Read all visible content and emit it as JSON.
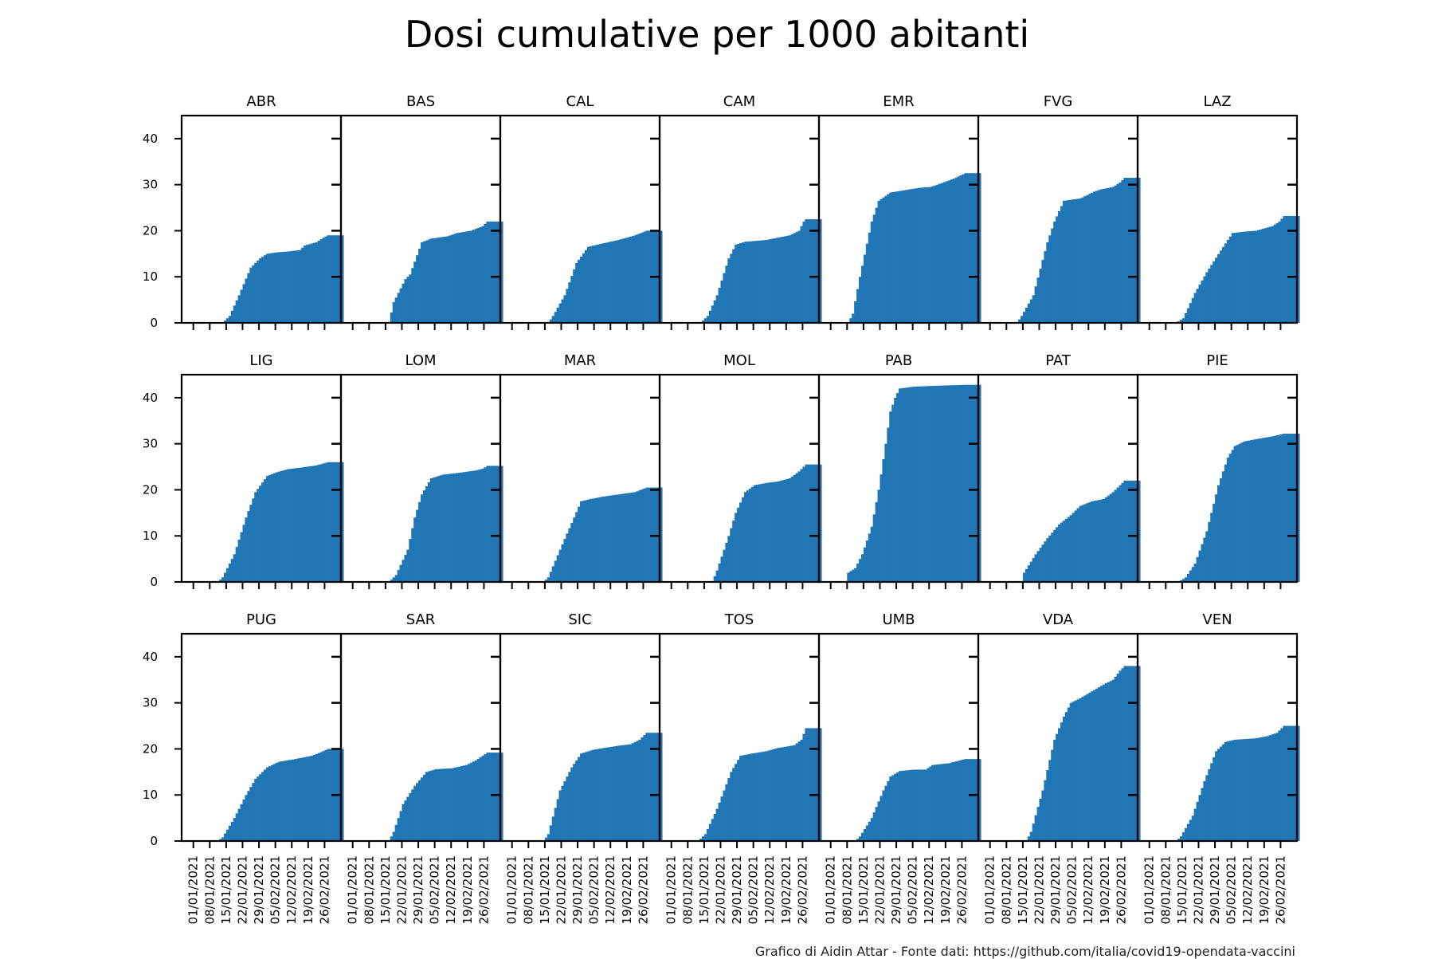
{
  "title": "Dosi cumulative per 1000 abitanti",
  "footer": "Grafico di Aidin Attar - Fonte dati: https://github.com/italia/covid19-opendata-vaccini",
  "colors": {
    "bar": "#2177b5",
    "axis": "#000000"
  },
  "chart_data": {
    "type": "bar",
    "layout": "small-multiples",
    "rows": 3,
    "cols": 7,
    "ylim": [
      0,
      45
    ],
    "yticks": [
      0,
      10,
      20,
      30,
      40
    ],
    "xlim": [
      "2020-12-27",
      "2021-03-05"
    ],
    "xticks": [
      "01/01/2021",
      "08/01/2021",
      "15/01/2021",
      "22/01/2021",
      "29/01/2021",
      "05/02/2021",
      "12/02/2021",
      "19/02/2021",
      "26/02/2021"
    ],
    "date_start": "2020-12-27",
    "date_end": "2021-03-05",
    "grid": false,
    "panels": [
      {
        "name": "ABR",
        "points": [
          [
            "2020-12-27",
            0
          ],
          [
            "2021-01-13",
            0
          ],
          [
            "2021-01-16",
            1.5
          ],
          [
            "2021-01-20",
            6
          ],
          [
            "2021-01-25",
            12
          ],
          [
            "2021-01-29",
            14
          ],
          [
            "2021-02-01",
            15
          ],
          [
            "2021-02-05",
            15.3
          ],
          [
            "2021-02-10",
            15.5
          ],
          [
            "2021-02-15",
            15.8
          ],
          [
            "2021-02-17",
            16.8
          ],
          [
            "2021-02-22",
            17.5
          ],
          [
            "2021-02-25",
            18.5
          ],
          [
            "2021-02-27",
            19
          ]
        ]
      },
      {
        "name": "BAS",
        "points": [
          [
            "2020-12-27",
            0
          ],
          [
            "2021-01-16",
            0
          ],
          [
            "2021-01-18",
            4.5
          ],
          [
            "2021-01-23",
            9.5
          ],
          [
            "2021-01-25",
            10.5
          ],
          [
            "2021-01-30",
            17.5
          ],
          [
            "2021-02-03",
            18.3
          ],
          [
            "2021-02-10",
            18.8
          ],
          [
            "2021-02-14",
            19.5
          ],
          [
            "2021-02-20",
            20
          ],
          [
            "2021-02-25",
            21
          ],
          [
            "2021-02-27",
            22
          ]
        ]
      },
      {
        "name": "CAL",
        "points": [
          [
            "2020-12-27",
            0
          ],
          [
            "2021-01-16",
            0
          ],
          [
            "2021-01-18",
            1.5
          ],
          [
            "2021-01-23",
            6
          ],
          [
            "2021-01-28",
            13
          ],
          [
            "2021-02-02",
            16.5
          ],
          [
            "2021-02-06",
            17
          ],
          [
            "2021-02-15",
            18
          ],
          [
            "2021-02-22",
            19
          ],
          [
            "2021-02-27",
            20
          ]
        ]
      },
      {
        "name": "CAM",
        "points": [
          [
            "2020-12-27",
            0
          ],
          [
            "2021-01-13",
            0
          ],
          [
            "2021-01-16",
            1.5
          ],
          [
            "2021-01-20",
            6
          ],
          [
            "2021-01-25",
            14
          ],
          [
            "2021-01-28",
            17
          ],
          [
            "2021-02-01",
            17.6
          ],
          [
            "2021-02-10",
            18
          ],
          [
            "2021-02-15",
            18.5
          ],
          [
            "2021-02-20",
            19
          ],
          [
            "2021-02-24",
            20
          ],
          [
            "2021-02-26",
            22
          ],
          [
            "2021-02-27",
            22.5
          ]
        ]
      },
      {
        "name": "EMR",
        "points": [
          [
            "2020-12-27",
            0
          ],
          [
            "2021-01-08",
            0
          ],
          [
            "2021-01-10",
            2
          ],
          [
            "2021-01-13",
            10
          ],
          [
            "2021-01-18",
            22
          ],
          [
            "2021-01-21",
            26.5
          ],
          [
            "2021-01-26",
            28.3
          ],
          [
            "2021-02-01",
            28.8
          ],
          [
            "2021-02-07",
            29.3
          ],
          [
            "2021-02-12",
            29.5
          ],
          [
            "2021-02-15",
            30
          ],
          [
            "2021-02-22",
            31.3
          ],
          [
            "2021-02-27",
            32.5
          ]
        ]
      },
      {
        "name": "FVG",
        "points": [
          [
            "2020-12-27",
            0
          ],
          [
            "2021-01-12",
            0
          ],
          [
            "2021-01-14",
            1.5
          ],
          [
            "2021-01-19",
            6
          ],
          [
            "2021-01-25",
            17.5
          ],
          [
            "2021-01-28",
            22
          ],
          [
            "2021-02-01",
            26.5
          ],
          [
            "2021-02-05",
            26.8
          ],
          [
            "2021-02-08",
            27
          ],
          [
            "2021-02-14",
            28.5
          ],
          [
            "2021-02-17",
            29
          ],
          [
            "2021-02-22",
            29.5
          ],
          [
            "2021-02-25",
            30.5
          ],
          [
            "2021-02-27",
            31.5
          ]
        ]
      },
      {
        "name": "LAZ",
        "points": [
          [
            "2020-12-27",
            0
          ],
          [
            "2021-01-12",
            0
          ],
          [
            "2021-01-15",
            1
          ],
          [
            "2021-01-20",
            6.5
          ],
          [
            "2021-01-25",
            11
          ],
          [
            "2021-02-01",
            16.5
          ],
          [
            "2021-02-05",
            19.5
          ],
          [
            "2021-02-10",
            19.8
          ],
          [
            "2021-02-15",
            20
          ],
          [
            "2021-02-22",
            21
          ],
          [
            "2021-02-25",
            22
          ],
          [
            "2021-02-27",
            23.2
          ]
        ]
      },
      {
        "name": "LIG",
        "points": [
          [
            "2020-12-27",
            0
          ],
          [
            "2021-01-11",
            0
          ],
          [
            "2021-01-13",
            1
          ],
          [
            "2021-01-18",
            6
          ],
          [
            "2021-01-23",
            14
          ],
          [
            "2021-01-27",
            19.5
          ],
          [
            "2021-02-01",
            23
          ],
          [
            "2021-02-05",
            23.8
          ],
          [
            "2021-02-10",
            24.5
          ],
          [
            "2021-02-15",
            24.8
          ],
          [
            "2021-02-22",
            25.3
          ],
          [
            "2021-02-27",
            26
          ]
        ]
      },
      {
        "name": "LOM",
        "points": [
          [
            "2020-12-27",
            0
          ],
          [
            "2021-01-16",
            0
          ],
          [
            "2021-01-19",
            1.5
          ],
          [
            "2021-01-24",
            7
          ],
          [
            "2021-01-27",
            14
          ],
          [
            "2021-01-30",
            19
          ],
          [
            "2021-02-03",
            22.5
          ],
          [
            "2021-02-08",
            23.3
          ],
          [
            "2021-02-15",
            23.7
          ],
          [
            "2021-02-22",
            24.2
          ],
          [
            "2021-02-25",
            24.6
          ],
          [
            "2021-02-27",
            25.2
          ]
        ]
      },
      {
        "name": "MAR",
        "points": [
          [
            "2020-12-27",
            0
          ],
          [
            "2021-01-14",
            0
          ],
          [
            "2021-01-16",
            1
          ],
          [
            "2021-01-21",
            7
          ],
          [
            "2021-01-27",
            14
          ],
          [
            "2021-01-30",
            17.5
          ],
          [
            "2021-02-03",
            18
          ],
          [
            "2021-02-08",
            18.5
          ],
          [
            "2021-02-15",
            19
          ],
          [
            "2021-02-22",
            19.5
          ],
          [
            "2021-02-27",
            20.5
          ]
        ]
      },
      {
        "name": "MOL",
        "points": [
          [
            "2020-12-27",
            0
          ],
          [
            "2021-01-18",
            0
          ],
          [
            "2021-01-20",
            2.5
          ],
          [
            "2021-01-25",
            10
          ],
          [
            "2021-01-28",
            15
          ],
          [
            "2021-02-01",
            19.5
          ],
          [
            "2021-02-05",
            21
          ],
          [
            "2021-02-10",
            21.5
          ],
          [
            "2021-02-15",
            21.8
          ],
          [
            "2021-02-20",
            22.5
          ],
          [
            "2021-02-24",
            24
          ],
          [
            "2021-02-27",
            25.5
          ]
        ]
      },
      {
        "name": "PAB",
        "points": [
          [
            "2020-12-27",
            0
          ],
          [
            "2021-01-07",
            0
          ],
          [
            "2021-01-08",
            2
          ],
          [
            "2021-01-11",
            3
          ],
          [
            "2021-01-14",
            6
          ],
          [
            "2021-01-18",
            12
          ],
          [
            "2021-01-21",
            20
          ],
          [
            "2021-01-24",
            30
          ],
          [
            "2021-01-26",
            37
          ],
          [
            "2021-01-28",
            40
          ],
          [
            "2021-01-30",
            42
          ],
          [
            "2021-02-05",
            42.4
          ],
          [
            "2021-02-15",
            42.6
          ],
          [
            "2021-02-27",
            42.8
          ]
        ]
      },
      {
        "name": "PAT",
        "points": [
          [
            "2020-12-27",
            0
          ],
          [
            "2021-01-14",
            0
          ],
          [
            "2021-01-15",
            2
          ],
          [
            "2021-01-20",
            6
          ],
          [
            "2021-01-25",
            9.5
          ],
          [
            "2021-01-30",
            12.5
          ],
          [
            "2021-02-04",
            14.5
          ],
          [
            "2021-02-08",
            16.5
          ],
          [
            "2021-02-13",
            17.5
          ],
          [
            "2021-02-18",
            18
          ],
          [
            "2021-02-22",
            19.5
          ],
          [
            "2021-02-27",
            22
          ]
        ]
      },
      {
        "name": "PIE",
        "points": [
          [
            "2020-12-27",
            0
          ],
          [
            "2021-01-13",
            0
          ],
          [
            "2021-01-16",
            1
          ],
          [
            "2021-01-20",
            4
          ],
          [
            "2021-01-25",
            11
          ],
          [
            "2021-01-30",
            21
          ],
          [
            "2021-02-03",
            27
          ],
          [
            "2021-02-06",
            29.5
          ],
          [
            "2021-02-10",
            30.5
          ],
          [
            "2021-02-15",
            31
          ],
          [
            "2021-02-22",
            31.6
          ],
          [
            "2021-02-27",
            32.2
          ]
        ]
      },
      {
        "name": "PUG",
        "points": [
          [
            "2020-12-27",
            0
          ],
          [
            "2021-01-11",
            0
          ],
          [
            "2021-01-13",
            0.8
          ],
          [
            "2021-01-18",
            5
          ],
          [
            "2021-01-23",
            10
          ],
          [
            "2021-01-27",
            13.5
          ],
          [
            "2021-02-01",
            16
          ],
          [
            "2021-02-06",
            17.2
          ],
          [
            "2021-02-13",
            17.8
          ],
          [
            "2021-02-20",
            18.5
          ],
          [
            "2021-02-24",
            19.3
          ],
          [
            "2021-02-27",
            20
          ]
        ]
      },
      {
        "name": "SAR",
        "points": [
          [
            "2020-12-27",
            0
          ],
          [
            "2021-01-16",
            0
          ],
          [
            "2021-01-18",
            2
          ],
          [
            "2021-01-22",
            8
          ],
          [
            "2021-01-27",
            12
          ],
          [
            "2021-02-01",
            15
          ],
          [
            "2021-02-05",
            15.6
          ],
          [
            "2021-02-12",
            15.8
          ],
          [
            "2021-02-18",
            16.5
          ],
          [
            "2021-02-22",
            17.5
          ],
          [
            "2021-02-27",
            19.2
          ]
        ]
      },
      {
        "name": "SIC",
        "points": [
          [
            "2020-12-27",
            0
          ],
          [
            "2021-01-14",
            0
          ],
          [
            "2021-01-16",
            1.5
          ],
          [
            "2021-01-21",
            11
          ],
          [
            "2021-01-26",
            16
          ],
          [
            "2021-01-30",
            19
          ],
          [
            "2021-02-04",
            19.8
          ],
          [
            "2021-02-10",
            20.3
          ],
          [
            "2021-02-15",
            20.7
          ],
          [
            "2021-02-20",
            21
          ],
          [
            "2021-02-24",
            22
          ],
          [
            "2021-02-27",
            23.5
          ]
        ]
      },
      {
        "name": "TOS",
        "points": [
          [
            "2020-12-27",
            0
          ],
          [
            "2021-01-12",
            0
          ],
          [
            "2021-01-15",
            1.5
          ],
          [
            "2021-01-20",
            7
          ],
          [
            "2021-01-26",
            15
          ],
          [
            "2021-01-30",
            18.5
          ],
          [
            "2021-02-04",
            19
          ],
          [
            "2021-02-10",
            19.5
          ],
          [
            "2021-02-15",
            20.2
          ],
          [
            "2021-02-22",
            20.8
          ],
          [
            "2021-02-25",
            22
          ],
          [
            "2021-02-27",
            24.5
          ]
        ]
      },
      {
        "name": "UMB",
        "points": [
          [
            "2020-12-27",
            0
          ],
          [
            "2021-01-11",
            0
          ],
          [
            "2021-01-13",
            1
          ],
          [
            "2021-01-18",
            5
          ],
          [
            "2021-01-23",
            11
          ],
          [
            "2021-01-26",
            14
          ],
          [
            "2021-01-30",
            15.2
          ],
          [
            "2021-02-05",
            15.5
          ],
          [
            "2021-02-10",
            15.5
          ],
          [
            "2021-02-13",
            16.5
          ],
          [
            "2021-02-20",
            16.9
          ],
          [
            "2021-02-27",
            17.8
          ]
        ]
      },
      {
        "name": "VDA",
        "points": [
          [
            "2020-12-27",
            0
          ],
          [
            "2021-01-16",
            0
          ],
          [
            "2021-01-18",
            2
          ],
          [
            "2021-01-23",
            11
          ],
          [
            "2021-01-28",
            22
          ],
          [
            "2021-02-01",
            27
          ],
          [
            "2021-02-04",
            30
          ],
          [
            "2021-02-08",
            31
          ],
          [
            "2021-02-13",
            32.5
          ],
          [
            "2021-02-18",
            34
          ],
          [
            "2021-02-22",
            35
          ],
          [
            "2021-02-25",
            37
          ],
          [
            "2021-02-27",
            38
          ]
        ]
      },
      {
        "name": "VEN",
        "points": [
          [
            "2020-12-27",
            0
          ],
          [
            "2021-01-12",
            0
          ],
          [
            "2021-01-14",
            1
          ],
          [
            "2021-01-19",
            5.5
          ],
          [
            "2021-01-24",
            13
          ],
          [
            "2021-01-29",
            19.5
          ],
          [
            "2021-02-02",
            21.5
          ],
          [
            "2021-02-06",
            22
          ],
          [
            "2021-02-15",
            22.3
          ],
          [
            "2021-02-20",
            22.8
          ],
          [
            "2021-02-24",
            23.5
          ],
          [
            "2021-02-27",
            25
          ]
        ]
      }
    ]
  }
}
